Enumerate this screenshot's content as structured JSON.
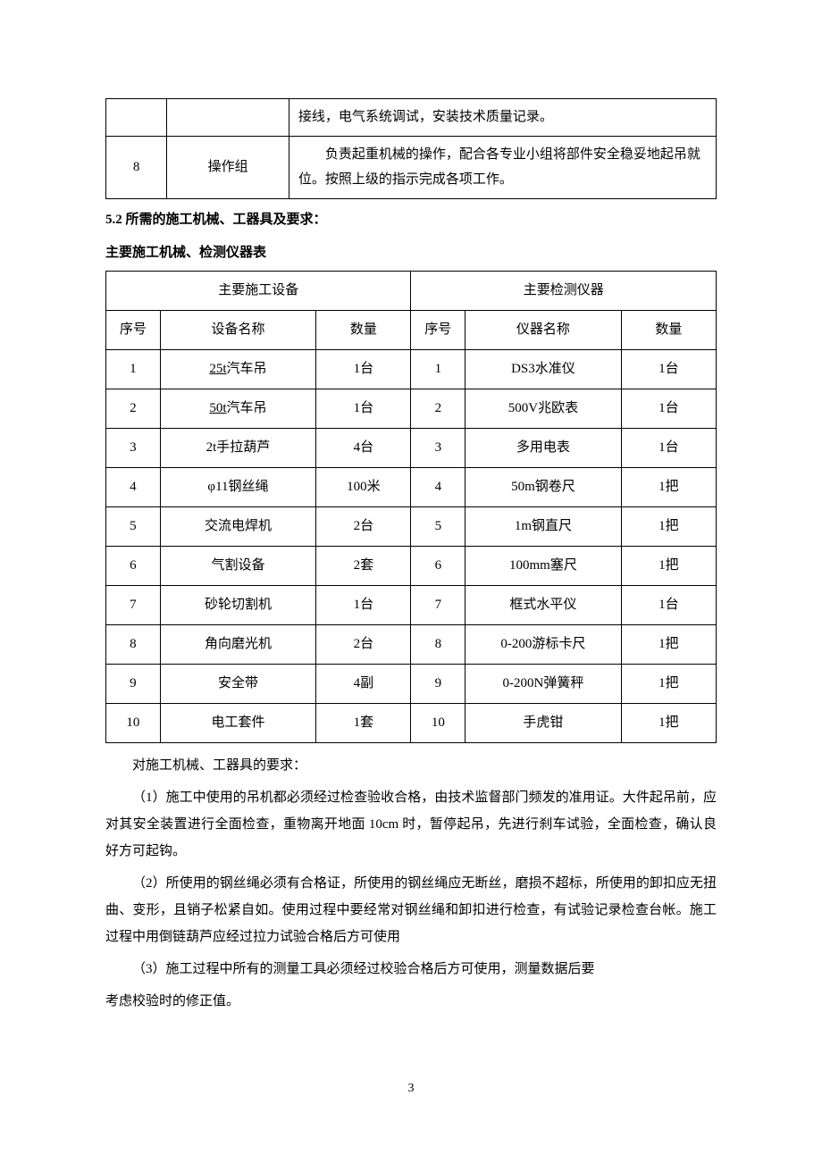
{
  "top_table": {
    "row1": {
      "desc": "接线，电气系统调试，安装技术质量记录。"
    },
    "row2": {
      "idx": "8",
      "group": "操作组",
      "desc": "　　负责起重机械的操作，配合各专业小组将部件安全稳妥地起吊就位。按照上级的指示完成各项工作。"
    }
  },
  "section_5_2": "5.2 所需的施工机械、工器具及要求：",
  "table_caption": "主要施工机械、检测仪器表",
  "headers": {
    "left_group": "主要施工设备",
    "right_group": "主要检测仪器",
    "seq": "序号",
    "dev_name": "设备名称",
    "qty": "数量",
    "inst_name": "仪器名称"
  },
  "rows": [
    {
      "l_seq": "1",
      "l_name": "25t汽车吊",
      "l_ul": "25t",
      "l_rest": "汽车吊",
      "l_qty": "1台",
      "r_seq": "1",
      "r_name": "DS3水准仪",
      "r_qty": "1台"
    },
    {
      "l_seq": "2",
      "l_name": "50t汽车吊",
      "l_ul": "50t",
      "l_rest": "汽车吊",
      "l_qty": "1台",
      "r_seq": "2",
      "r_name": "500V兆欧表",
      "r_qty": "1台"
    },
    {
      "l_seq": "3",
      "l_name": "2t手拉葫芦",
      "l_qty": "4台",
      "r_seq": "3",
      "r_name": "多用电表",
      "r_qty": "1台"
    },
    {
      "l_seq": "4",
      "l_name": "φ11钢丝绳",
      "l_qty": "100米",
      "r_seq": "4",
      "r_name": "50m钢卷尺",
      "r_qty": "1把"
    },
    {
      "l_seq": "5",
      "l_name": "交流电焊机",
      "l_qty": "2台",
      "r_seq": "5",
      "r_name": "1m钢直尺",
      "r_qty": "1把"
    },
    {
      "l_seq": "6",
      "l_name": "气割设备",
      "l_qty": "2套",
      "r_seq": "6",
      "r_name": "100mm塞尺",
      "r_qty": "1把"
    },
    {
      "l_seq": "7",
      "l_name": "砂轮切割机",
      "l_qty": "1台",
      "r_seq": "7",
      "r_name": "框式水平仪",
      "r_qty": "1台"
    },
    {
      "l_seq": "8",
      "l_name": "角向磨光机",
      "l_qty": "2台",
      "r_seq": "8",
      "r_name": "0-200游标卡尺",
      "r_qty": "1把"
    },
    {
      "l_seq": "9",
      "l_name": "安全带",
      "l_qty": "4副",
      "r_seq": "9",
      "r_name": "0-200N弹簧秤",
      "r_qty": "1把"
    },
    {
      "l_seq": "10",
      "l_name": "电工套件",
      "l_qty": "1套",
      "r_seq": "10",
      "r_name": "手虎钳",
      "r_qty": "1把"
    }
  ],
  "req_title": "对施工机械、工器具的要求：",
  "req_1": "（1）施工中使用的吊机都必须经过检查验收合格，由技术监督部门频发的准用证。大件起吊前，应对其安全装置进行全面检查，重物离开地面 10cm 时，暂停起吊，先进行刹车试验，全面检查，确认良好方可起钩。",
  "req_2": "（2）所使用的钢丝绳必须有合格证，所使用的钢丝绳应无断丝，磨损不超标，所使用的卸扣应无扭曲、变形，且销子松紧自如。使用过程中要经常对钢丝绳和卸扣进行检查，有试验记录检查台帐。施工过程中用倒链葫芦应经过拉力试验合格后方可使用",
  "req_3a": "（3）施工过程中所有的测量工具必须经过校验合格后方可使用，测量数据后要",
  "req_3b": "考虑校验时的修正值。",
  "page_number": "3"
}
